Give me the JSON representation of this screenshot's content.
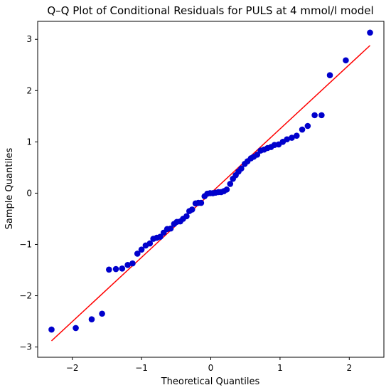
{
  "chart_data": {
    "type": "scatter",
    "title": "Q–Q Plot of Conditional Residuals for PULS at 4 mmol/l model",
    "xlabel": "Theoretical Quantiles",
    "ylabel": "Sample Quantiles",
    "xlim": [
      -2.5,
      2.5
    ],
    "ylim": [
      -3.2,
      3.35
    ],
    "xticks": [
      -2,
      -1,
      0,
      1,
      2
    ],
    "xtick_labels": [
      "−2",
      "−1",
      "0",
      "1",
      "2"
    ],
    "yticks": [
      -3,
      -2,
      -1,
      0,
      1,
      2,
      3
    ],
    "ytick_labels": [
      "−3",
      "−2",
      "−1",
      "0",
      "1",
      "2",
      "3"
    ],
    "grid": false,
    "legend": "none",
    "colors": {
      "points": "#0000cc",
      "reference_line": "#ff0000"
    },
    "reference_line": {
      "x": [
        -2.3,
        2.3
      ],
      "y": [
        -2.88,
        2.88
      ]
    },
    "series": [
      {
        "x": [
          -2.3,
          -1.95,
          -1.72,
          -1.57,
          -1.47,
          -1.37,
          -1.28,
          -1.2,
          -1.13,
          -1.06,
          -1.0,
          -0.94,
          -0.88,
          -0.83,
          -0.78,
          -0.73,
          -0.68,
          -0.63,
          -0.58,
          -0.53,
          -0.49,
          -0.44,
          -0.4,
          -0.35,
          -0.31,
          -0.27,
          -0.22,
          -0.18,
          -0.14,
          -0.09,
          -0.05,
          -0.01,
          0.03,
          0.07,
          0.11,
          0.15,
          0.19,
          0.23,
          0.28,
          0.32,
          0.36,
          0.4,
          0.44,
          0.49,
          0.53,
          0.58,
          0.62,
          0.67,
          0.72,
          0.77,
          0.82,
          0.87,
          0.92,
          0.98,
          1.04,
          1.1,
          1.17,
          1.24,
          1.32,
          1.4,
          1.5,
          1.6,
          1.72,
          1.95,
          2.3
        ],
        "y": [
          -2.66,
          -2.63,
          -2.46,
          -2.35,
          -1.49,
          -1.48,
          -1.47,
          -1.4,
          -1.37,
          -1.18,
          -1.1,
          -1.02,
          -0.98,
          -0.89,
          -0.87,
          -0.85,
          -0.77,
          -0.7,
          -0.69,
          -0.6,
          -0.56,
          -0.55,
          -0.5,
          -0.45,
          -0.35,
          -0.32,
          -0.2,
          -0.19,
          -0.19,
          -0.06,
          -0.01,
          0.0,
          0.0,
          0.01,
          0.02,
          0.02,
          0.04,
          0.07,
          0.18,
          0.28,
          0.35,
          0.42,
          0.48,
          0.57,
          0.62,
          0.68,
          0.71,
          0.75,
          0.83,
          0.85,
          0.88,
          0.9,
          0.94,
          0.95,
          1.0,
          1.05,
          1.08,
          1.12,
          1.24,
          1.31,
          1.52,
          1.52,
          2.3,
          2.59,
          3.13
        ]
      }
    ]
  }
}
